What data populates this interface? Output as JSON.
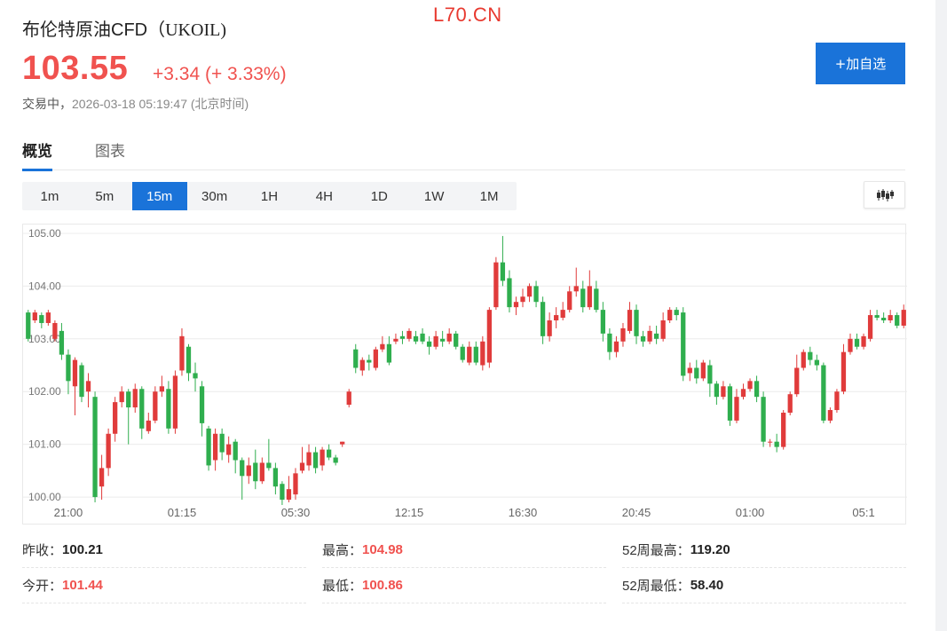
{
  "watermark": "L70.CN",
  "instrument": {
    "name": "布伦特原油CFD",
    "code": "（UKOIL)"
  },
  "quote": {
    "price": "103.55",
    "change": "+3.34 (+ 3.33%)",
    "status": "交易中，",
    "timestamp": "2026-03-18 05:19:47",
    "timezone": "(北京时间)"
  },
  "actions": {
    "follow_label": "+加自选"
  },
  "tabs": [
    {
      "label": "概览"
    },
    {
      "label": "图表"
    }
  ],
  "periods": [
    "1m",
    "5m",
    "15m",
    "30m",
    "1H",
    "4H",
    "1D",
    "1W",
    "1M"
  ],
  "selected_period": "15m",
  "colors": {
    "up": "#e03b3b",
    "down": "#2fae4e",
    "accent": "#1a73d9"
  },
  "chart_data": {
    "type": "candlestick",
    "ylim": [
      99.85,
      105.1
    ],
    "y_ticks": [
      "105.00",
      "104.00",
      "103.00",
      "102.00",
      "101.00",
      "100.00"
    ],
    "y_tick_values": [
      105,
      104,
      103,
      102,
      101,
      100
    ],
    "x_ticks": [
      "21:00",
      "01:15",
      "05:30",
      "12:15",
      "16:30",
      "20:45",
      "01:00",
      "05:1"
    ],
    "x_tick_index": [
      6,
      23,
      40,
      57,
      74,
      91,
      108,
      125
    ],
    "candles": [
      [
        103.5,
        103.0,
        103.55,
        102.95
      ],
      [
        103.35,
        103.5,
        103.55,
        103.3
      ],
      [
        103.45,
        103.3,
        103.5,
        103.2
      ],
      [
        103.3,
        103.5,
        103.55,
        103.25
      ],
      [
        103.0,
        103.3,
        103.35,
        102.95
      ],
      [
        103.15,
        102.7,
        103.3,
        102.6
      ],
      [
        102.7,
        102.2,
        102.8,
        101.95
      ],
      [
        102.1,
        102.6,
        102.65,
        101.55
      ],
      [
        102.5,
        101.9,
        102.55,
        101.8
      ],
      [
        102.0,
        102.2,
        102.35,
        101.7
      ],
      [
        101.9,
        100.0,
        102.0,
        99.9
      ],
      [
        100.2,
        100.55,
        100.8,
        99.95
      ],
      [
        100.55,
        101.2,
        101.3,
        100.4
      ],
      [
        101.2,
        101.8,
        101.9,
        101.05
      ],
      [
        101.8,
        102.0,
        102.1,
        101.7
      ],
      [
        102.0,
        101.7,
        102.05,
        101.0
      ],
      [
        101.7,
        102.05,
        102.15,
        101.6
      ],
      [
        102.05,
        101.3,
        102.1,
        101.1
      ],
      [
        101.25,
        101.45,
        101.6,
        101.2
      ],
      [
        101.45,
        102.0,
        102.1,
        101.4
      ],
      [
        102.0,
        102.1,
        102.3,
        101.9
      ],
      [
        102.05,
        101.3,
        102.2,
        101.2
      ],
      [
        101.3,
        102.3,
        102.4,
        101.2
      ],
      [
        102.4,
        103.05,
        103.2,
        102.3
      ],
      [
        102.85,
        102.35,
        102.9,
        102.2
      ],
      [
        102.35,
        102.25,
        102.55,
        102.0
      ],
      [
        102.1,
        101.4,
        102.2,
        101.15
      ],
      [
        101.3,
        100.6,
        101.35,
        100.5
      ],
      [
        100.7,
        101.2,
        101.3,
        100.5
      ],
      [
        101.2,
        100.85,
        101.3,
        100.7
      ],
      [
        100.8,
        101.0,
        101.15,
        100.65
      ],
      [
        101.05,
        100.7,
        101.1,
        100.45
      ],
      [
        100.7,
        100.4,
        100.75,
        99.95
      ],
      [
        100.4,
        100.6,
        100.75,
        100.25
      ],
      [
        100.65,
        100.3,
        100.9,
        100.15
      ],
      [
        100.3,
        100.65,
        100.75,
        100.25
      ],
      [
        100.65,
        100.55,
        101.1,
        100.5
      ],
      [
        100.55,
        100.2,
        100.65,
        100.05
      ],
      [
        100.25,
        99.95,
        100.3,
        99.85
      ],
      [
        99.95,
        100.15,
        100.4,
        99.9
      ],
      [
        100.05,
        100.45,
        100.55,
        99.95
      ],
      [
        100.5,
        100.65,
        100.95,
        100.45
      ],
      [
        100.6,
        100.85,
        101.0,
        100.5
      ],
      [
        100.85,
        100.55,
        100.95,
        100.45
      ],
      [
        100.6,
        100.9,
        100.95,
        100.5
      ],
      [
        100.9,
        100.75,
        101.0,
        100.7
      ],
      [
        100.75,
        100.65,
        100.8,
        100.6
      ],
      [
        101.0,
        101.05,
        101.05,
        100.95
      ],
      [
        101.75,
        102.0,
        102.05,
        101.7
      ],
      [
        102.8,
        102.45,
        102.9,
        102.35
      ],
      [
        102.4,
        102.6,
        102.65,
        102.3
      ],
      [
        102.6,
        102.55,
        102.7,
        102.4
      ],
      [
        102.45,
        102.8,
        102.85,
        102.4
      ],
      [
        102.8,
        102.9,
        103.05,
        102.75
      ],
      [
        102.9,
        102.55,
        103.05,
        102.5
      ],
      [
        102.95,
        103.0,
        103.1,
        102.9
      ],
      [
        103.05,
        103.0,
        103.15,
        102.9
      ],
      [
        103.0,
        103.15,
        103.2,
        102.95
      ],
      [
        103.05,
        102.95,
        103.15,
        102.9
      ],
      [
        103.1,
        102.95,
        103.2,
        102.9
      ],
      [
        102.95,
        102.85,
        103.05,
        102.7
      ],
      [
        102.85,
        103.05,
        103.15,
        102.8
      ],
      [
        103.0,
        102.95,
        103.15,
        102.85
      ],
      [
        102.95,
        103.1,
        103.2,
        102.9
      ],
      [
        103.1,
        102.85,
        103.15,
        102.8
      ],
      [
        102.85,
        102.6,
        102.9,
        102.55
      ],
      [
        102.55,
        102.85,
        102.95,
        102.5
      ],
      [
        102.85,
        102.55,
        102.95,
        102.5
      ],
      [
        102.5,
        102.95,
        103.05,
        102.4
      ],
      [
        102.55,
        103.55,
        103.6,
        102.45
      ],
      [
        103.6,
        104.45,
        104.55,
        103.55
      ],
      [
        104.45,
        104.1,
        104.95,
        104.0
      ],
      [
        104.15,
        103.6,
        104.3,
        103.5
      ],
      [
        103.6,
        103.7,
        103.8,
        103.45
      ],
      [
        103.7,
        103.8,
        103.95,
        103.6
      ],
      [
        103.8,
        104.0,
        104.05,
        103.7
      ],
      [
        104.0,
        103.7,
        104.1,
        103.6
      ],
      [
        103.7,
        103.05,
        103.8,
        102.9
      ],
      [
        103.05,
        103.35,
        103.5,
        102.95
      ],
      [
        103.35,
        103.45,
        103.6,
        103.2
      ],
      [
        103.4,
        103.55,
        103.7,
        103.35
      ],
      [
        103.55,
        103.9,
        104.0,
        103.5
      ],
      [
        103.9,
        104.0,
        104.35,
        103.8
      ],
      [
        103.95,
        103.6,
        104.1,
        103.5
      ],
      [
        103.6,
        104.0,
        104.3,
        103.55
      ],
      [
        103.95,
        103.55,
        104.1,
        103.5
      ],
      [
        103.55,
        103.1,
        103.7,
        102.95
      ],
      [
        103.1,
        102.75,
        103.2,
        102.6
      ],
      [
        102.75,
        102.95,
        103.05,
        102.65
      ],
      [
        102.95,
        103.2,
        103.3,
        102.85
      ],
      [
        103.15,
        103.55,
        103.7,
        103.1
      ],
      [
        103.55,
        103.05,
        103.65,
        102.9
      ],
      [
        103.05,
        102.95,
        103.15,
        102.85
      ],
      [
        102.95,
        103.15,
        103.25,
        102.9
      ],
      [
        103.1,
        103.0,
        103.25,
        102.9
      ],
      [
        103.0,
        103.35,
        103.5,
        102.95
      ],
      [
        103.35,
        103.55,
        103.6,
        103.3
      ],
      [
        103.55,
        103.45,
        103.6,
        103.35
      ],
      [
        103.5,
        102.3,
        103.6,
        102.2
      ],
      [
        102.35,
        102.45,
        102.55,
        102.2
      ],
      [
        102.45,
        102.25,
        102.6,
        102.15
      ],
      [
        102.25,
        102.55,
        102.6,
        102.2
      ],
      [
        102.5,
        102.15,
        102.6,
        101.9
      ],
      [
        102.15,
        101.9,
        102.2,
        101.75
      ],
      [
        101.9,
        102.1,
        102.2,
        101.85
      ],
      [
        102.1,
        101.45,
        102.15,
        101.35
      ],
      [
        101.45,
        101.9,
        102.05,
        101.4
      ],
      [
        101.9,
        102.05,
        102.15,
        101.85
      ],
      [
        102.05,
        102.2,
        102.25,
        102.0
      ],
      [
        102.2,
        101.9,
        102.3,
        101.8
      ],
      [
        101.9,
        101.05,
        102.0,
        100.95
      ],
      [
        101.05,
        101.05,
        101.1,
        100.95
      ],
      [
        101.05,
        100.95,
        101.2,
        100.85
      ],
      [
        100.95,
        101.6,
        101.65,
        100.9
      ],
      [
        101.6,
        101.95,
        102.0,
        101.55
      ],
      [
        101.95,
        102.45,
        102.7,
        101.9
      ],
      [
        102.45,
        102.75,
        102.8,
        102.4
      ],
      [
        102.75,
        102.6,
        102.85,
        102.5
      ],
      [
        102.6,
        102.5,
        102.7,
        102.4
      ],
      [
        102.5,
        101.45,
        102.55,
        101.4
      ],
      [
        101.45,
        101.65,
        101.7,
        101.4
      ],
      [
        101.65,
        102.0,
        102.05,
        101.6
      ],
      [
        102.0,
        102.75,
        102.9,
        101.95
      ],
      [
        102.75,
        103.0,
        103.1,
        102.7
      ],
      [
        103.0,
        102.85,
        103.1,
        102.8
      ],
      [
        102.85,
        103.05,
        103.1,
        102.8
      ],
      [
        103.0,
        103.45,
        103.55,
        102.95
      ],
      [
        103.45,
        103.4,
        103.55,
        103.35
      ],
      [
        103.4,
        103.35,
        103.5,
        103.3
      ],
      [
        103.35,
        103.45,
        103.55,
        103.3
      ],
      [
        103.45,
        103.25,
        103.5,
        103.2
      ],
      [
        103.25,
        103.55,
        103.65,
        103.2
      ]
    ]
  },
  "stats": [
    {
      "label": "昨收：",
      "value": "100.21",
      "tone": "normal"
    },
    {
      "label": "最高：",
      "value": "104.98",
      "tone": "red"
    },
    {
      "label": "52周最高：",
      "value": "119.20",
      "tone": "normal"
    },
    {
      "label": "今开：",
      "value": "101.44",
      "tone": "red"
    },
    {
      "label": "最低：",
      "value": "100.86",
      "tone": "red"
    },
    {
      "label": "52周最低：",
      "value": "58.40",
      "tone": "normal"
    }
  ]
}
